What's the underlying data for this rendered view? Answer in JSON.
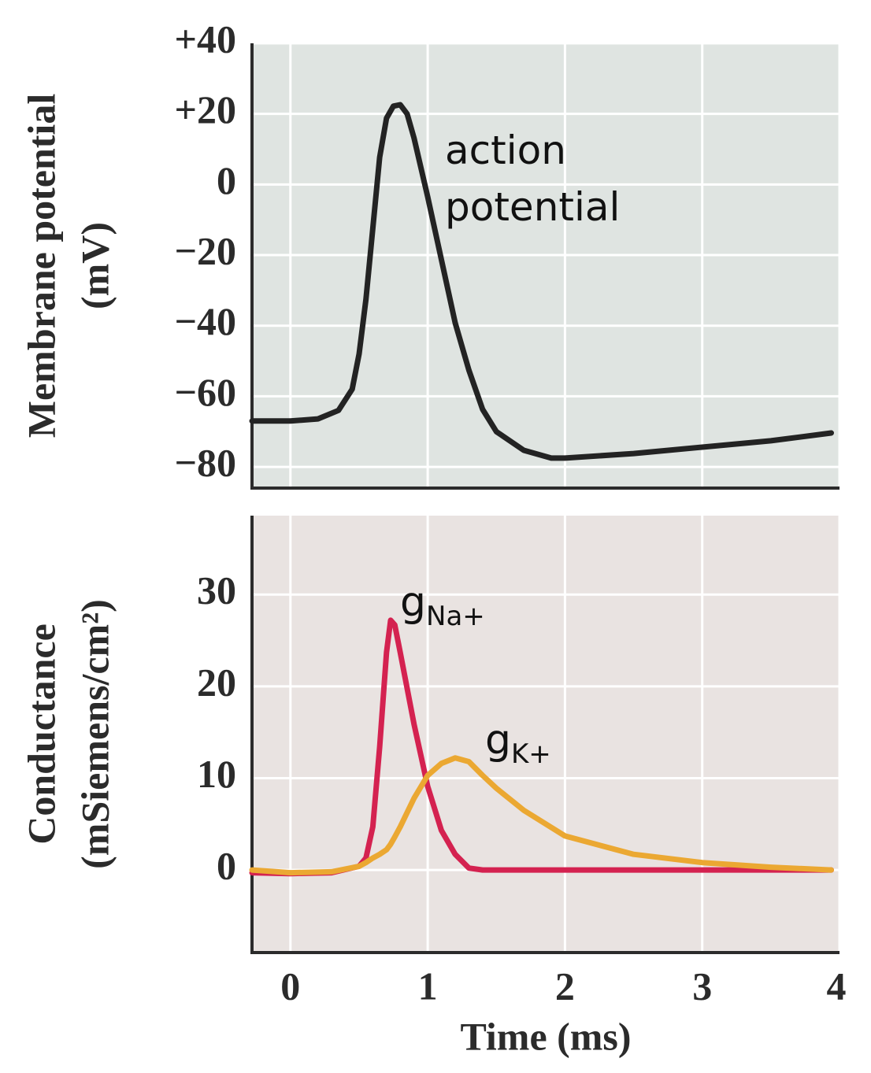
{
  "chart_data": [
    {
      "type": "line",
      "ylabel": [
        "Membrane potential",
        "(mV)"
      ],
      "annotation": "action potential",
      "x": [
        -0.28,
        0,
        0.2,
        0.35,
        0.45,
        0.5,
        0.55,
        0.6,
        0.65,
        0.7,
        0.75,
        0.8,
        0.85,
        0.9,
        1.0,
        1.1,
        1.2,
        1.3,
        1.4,
        1.5,
        1.7,
        1.9,
        2.0,
        2.5,
        3.0,
        3.5,
        3.94
      ],
      "values": [
        -67,
        -67,
        -66.4,
        -64,
        -58,
        -48,
        -32.5,
        -12.4,
        7.7,
        18.8,
        22.2,
        22.6,
        20,
        13.2,
        -3.5,
        -21.3,
        -39.2,
        -52.6,
        -63.7,
        -70,
        -75.3,
        -77.5,
        -77.5,
        -76.2,
        -74.4,
        -72.6,
        -70.4
      ],
      "color": "#232323",
      "background": "#dfe4e1",
      "xlim": [
        -0.28,
        4
      ],
      "xticks": [
        0,
        1,
        2,
        3,
        4
      ],
      "xtick_labels": false,
      "ylim": [
        -86,
        40
      ],
      "yticks": [
        {
          "value": 40,
          "label": "+40"
        },
        {
          "value": 20,
          "label": "+20"
        },
        0,
        {
          "value": -20,
          "label": "−20"
        },
        {
          "value": -40,
          "label": "−40"
        },
        {
          "value": -60,
          "label": "−60"
        },
        {
          "value": -80,
          "label": "−80"
        }
      ],
      "grid": true
    },
    {
      "type": "line",
      "ylabel": [
        "Conductance",
        "(mSiemens/cm²)"
      ],
      "xlabel": "Time (ms)",
      "x": [
        -0.28,
        0,
        0.3,
        0.5,
        0.55,
        0.6,
        0.65,
        0.7,
        0.73,
        0.76,
        0.8,
        0.9,
        1.0,
        1.1,
        1.2,
        1.3,
        1.4,
        1.5,
        1.7,
        2.0,
        2.5,
        3.0,
        3.5,
        3.94
      ],
      "series": [
        {
          "name": "g",
          "subscript": "Na+",
          "color": "#d42250",
          "values": [
            -0.3,
            -0.4,
            -0.3,
            0.4,
            1.3,
            4.7,
            13.4,
            23.7,
            27.2,
            26.7,
            23.7,
            15.9,
            9.1,
            4.3,
            1.7,
            0.2,
            0,
            0,
            0,
            0,
            0,
            0,
            0,
            0
          ]
        },
        {
          "name": "g",
          "subscript": "K+",
          "color": "#eba832",
          "values": [
            0,
            -0.3,
            -0.2,
            0.4,
            0.8,
            1.3,
            1.7,
            2.2,
            2.8,
            3.6,
            4.7,
            7.8,
            10.3,
            11.6,
            12.2,
            11.8,
            10.3,
            8.9,
            6.5,
            3.7,
            1.7,
            0.8,
            0.3,
            0
          ]
        }
      ],
      "background": "#e9e3e1",
      "xlim": [
        -0.28,
        4
      ],
      "xticks": [
        0,
        1,
        2,
        3,
        4
      ],
      "xtick_labels": true,
      "ylim": [
        -9,
        38.6
      ],
      "yticks": [
        0,
        10,
        20,
        30
      ],
      "grid": true
    }
  ]
}
